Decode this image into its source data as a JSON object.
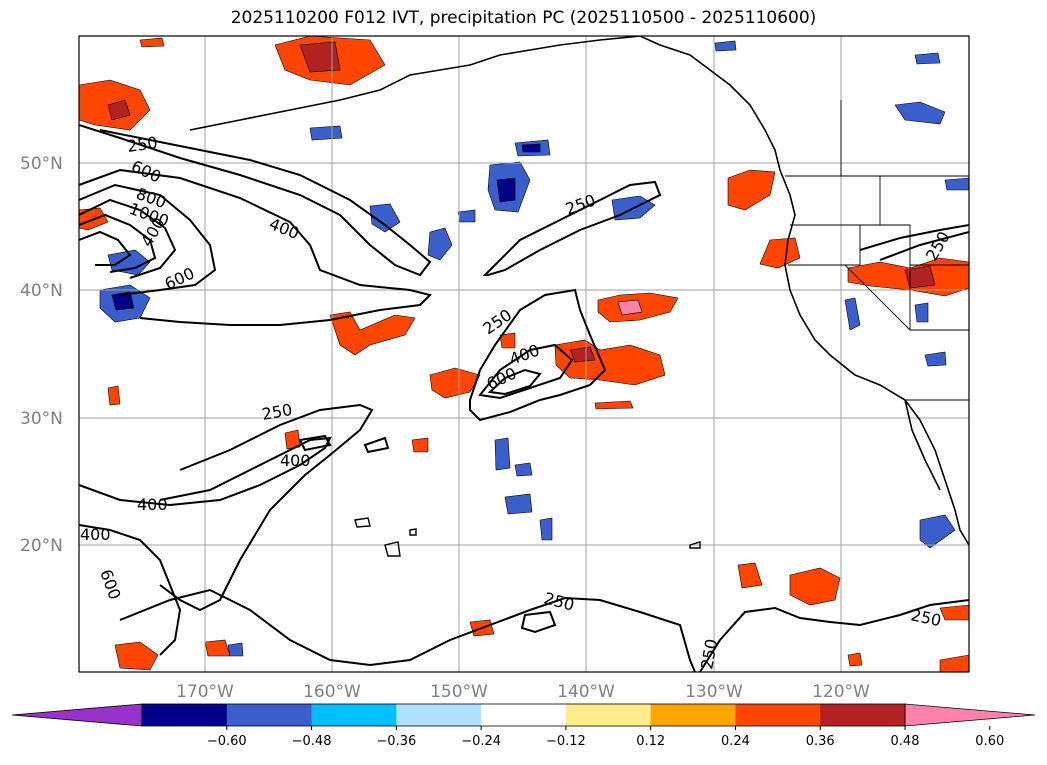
{
  "title": "2025110200 F012 IVT, precipitation PC (2025110500 - 2025110600)",
  "lat_labels": [
    "50°N",
    "40°N",
    "30°N",
    "20°N"
  ],
  "lon_labels": [
    "170°W",
    "160°W",
    "150°W",
    "140°W",
    "130°W",
    "120°W"
  ],
  "colorbar": {
    "colors": [
      "#9932cc",
      "#00008b",
      "#3a5fcd",
      "#00bfff",
      "#b0e2ff",
      "#ffffff",
      "#ffec8b",
      "#ffa500",
      "#ff4500",
      "#b22222",
      "#ff82ab"
    ],
    "tick_labels": [
      "−0.60",
      "−0.48",
      "−0.36",
      "−0.24",
      "−0.12",
      "0.12",
      "0.24",
      "0.36",
      "0.48",
      "0.60"
    ]
  },
  "contour_labels": [
    "250",
    "800",
    "1000",
    "400",
    "400",
    "400",
    "600",
    "250",
    "250",
    "400",
    "600",
    "250",
    "400",
    "400",
    "600",
    "600",
    "250",
    "250",
    "250",
    "250"
  ],
  "colors": {
    "contour": "#000000",
    "grid": "#a0a0a0",
    "tick_label": "#808080"
  }
}
